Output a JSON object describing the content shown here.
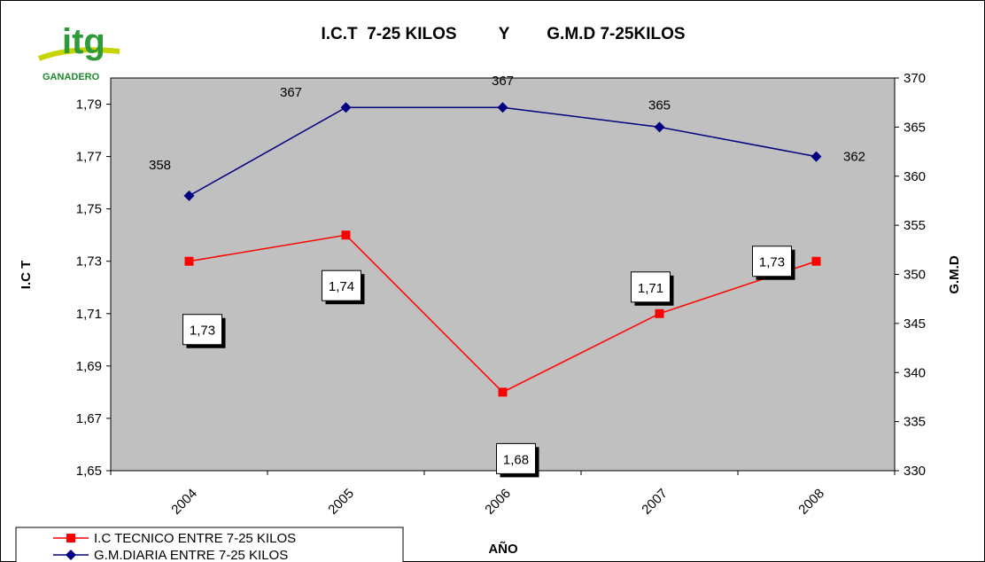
{
  "logo": {
    "mark": "itg",
    "text": "GANADERO",
    "color_mark": "#2e9a3a",
    "color_text": "#1f8a2e",
    "color_swoosh": "#c8d400"
  },
  "chart_data": {
    "type": "line",
    "title": "I.C.T  7-25 KILOS         Y        G.M.D 7-25KILOS",
    "xlabel": "AÑO",
    "ylabel": "I.C T",
    "y2label": "G.M.D",
    "categories": [
      "2004",
      "2005",
      "2006",
      "2007",
      "2008"
    ],
    "ylim": [
      1.65,
      1.8
    ],
    "yticks": [
      "1,65",
      "1,67",
      "1,69",
      "1,71",
      "1,73",
      "1,75",
      "1,77",
      "1,79"
    ],
    "y2lim": [
      330,
      370
    ],
    "y2ticks": [
      "330",
      "335",
      "340",
      "345",
      "350",
      "355",
      "360",
      "365",
      "370"
    ],
    "plot_background": "#c0c0c0",
    "grid": false,
    "legend_position": "bottom-left",
    "series": [
      {
        "name": "I.C TECNICO ENTRE 7-25 KILOS",
        "axis": "left",
        "color": "#ff0000",
        "marker": "square",
        "values": [
          1.73,
          1.74,
          1.68,
          1.71,
          1.73
        ],
        "labels": [
          "1,73",
          "1,74",
          "1,68",
          "1,71",
          "1,73"
        ]
      },
      {
        "name": "G.M.DIARIA ENTRE 7-25 KILOS",
        "axis": "right",
        "color": "#000080",
        "marker": "diamond",
        "values": [
          358,
          367,
          367,
          365,
          362
        ],
        "labels": [
          "358",
          "367",
          "367",
          "365",
          "362"
        ]
      }
    ]
  }
}
